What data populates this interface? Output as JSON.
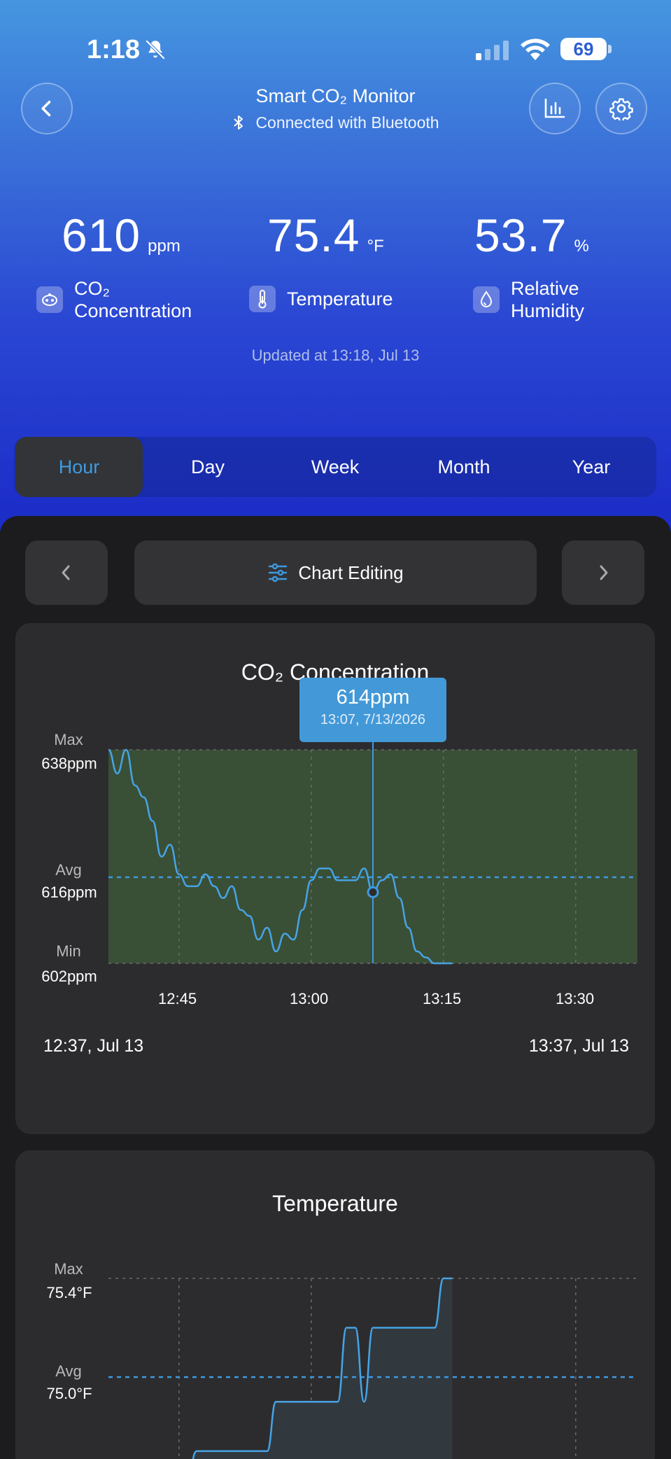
{
  "status_bar": {
    "time": "1:18",
    "battery": "69"
  },
  "header": {
    "title": "Smart CO₂ Monitor",
    "subtitle": "Connected with Bluetooth"
  },
  "metrics": [
    {
      "value": "610",
      "unit": "ppm",
      "label_line1": "CO₂",
      "label_line2": "Concentration",
      "icon": "co2-icon"
    },
    {
      "value": "75.4",
      "unit": "°F",
      "label_line1": "Temperature",
      "label_line2": "",
      "icon": "thermometer-icon"
    },
    {
      "value": "53.7",
      "unit": "%",
      "label_line1": "Relative",
      "label_line2": "Humidity",
      "icon": "humidity-icon"
    }
  ],
  "updated": "Updated at 13:18,  Jul 13",
  "tabs": [
    "Hour",
    "Day",
    "Week",
    "Month",
    "Year"
  ],
  "active_tab": "Hour",
  "chart_editing_label": "Chart Editing",
  "co2_chart": {
    "title": "CO₂ Concentration",
    "max_label": "Max",
    "max_value": "638ppm",
    "avg_label": "Avg",
    "avg_value": "616ppm",
    "min_label": "Min",
    "min_value": "602ppm",
    "x_ticks": [
      "12:45",
      "13:00",
      "13:15",
      "13:30"
    ],
    "range_start": "12:37,  Jul 13",
    "range_end": "13:37,  Jul 13",
    "tooltip_value": "614ppm",
    "tooltip_date": "13:07,  7/13/2026"
  },
  "temp_chart": {
    "title": "Temperature",
    "max_label": "Max",
    "max_value": "75.4°F",
    "avg_label": "Avg",
    "avg_value": "75.0°F"
  },
  "chart_data": [
    {
      "type": "line",
      "title": "CO₂ Concentration",
      "x": [
        "12:37",
        "12:38",
        "12:39",
        "12:40",
        "12:41",
        "12:42",
        "12:43",
        "12:44",
        "12:45",
        "12:46",
        "12:47",
        "12:48",
        "12:49",
        "12:50",
        "12:51",
        "12:52",
        "12:53",
        "12:54",
        "12:55",
        "12:56",
        "12:57",
        "12:58",
        "12:59",
        "13:00",
        "13:01",
        "13:02",
        "13:03",
        "13:04",
        "13:05",
        "13:06",
        "13:07",
        "13:08",
        "13:09",
        "13:10",
        "13:11",
        "13:12",
        "13:13",
        "13:14",
        "13:15",
        "13:16"
      ],
      "y": [
        638,
        634,
        638,
        632,
        630,
        626,
        620,
        622,
        617,
        615,
        615,
        617,
        615,
        613,
        615,
        611,
        610,
        606,
        608,
        604,
        607,
        606,
        611,
        616,
        618,
        618,
        616,
        616,
        616,
        618,
        614,
        616,
        617,
        613,
        608,
        604,
        603,
        602,
        602,
        602
      ],
      "xlim": [
        "12:37",
        "13:37"
      ],
      "ylim": [
        602,
        638
      ],
      "ylabel_max": "638ppm",
      "avg": 616,
      "highlight": {
        "x": "13:07",
        "y": 614
      }
    },
    {
      "type": "area",
      "title": "Temperature",
      "x": [
        "12:37",
        "12:46",
        "12:47",
        "12:55",
        "12:56",
        "13:03",
        "13:04",
        "13:05",
        "13:06",
        "13:07",
        "13:14",
        "13:15",
        "13:16"
      ],
      "y": [
        74.6,
        74.6,
        74.7,
        74.7,
        74.9,
        74.9,
        75.2,
        75.2,
        74.9,
        75.2,
        75.2,
        75.4,
        75.4
      ],
      "ylabel_max": "75.4°F",
      "avg": 75.0
    }
  ],
  "colors": {
    "accent": "#3f9ae0",
    "chart_fill": "#394f36",
    "panel": "#2c2c2e"
  }
}
